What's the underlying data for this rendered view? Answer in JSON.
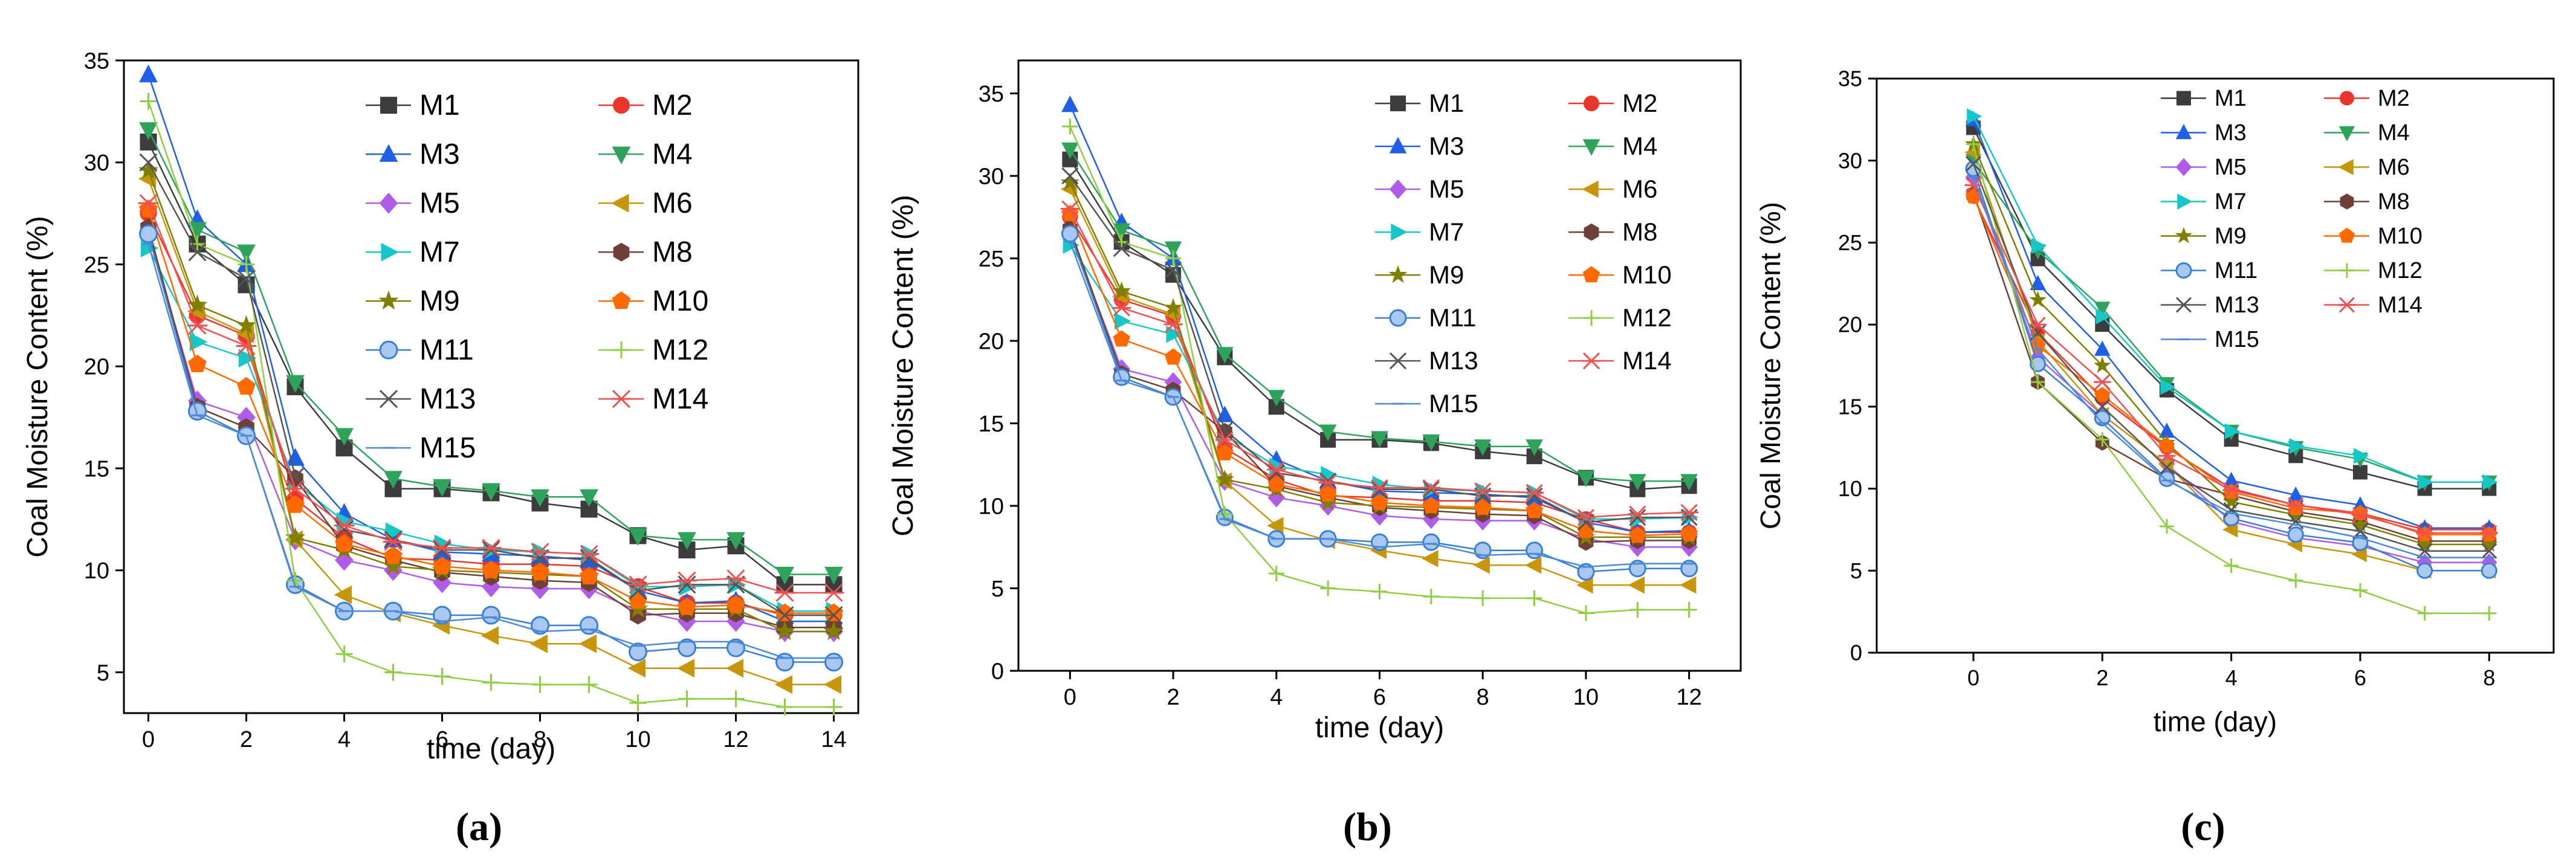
{
  "chart_data": [
    {
      "type": "line",
      "panel_label": "(a)",
      "xlabel": "time (day)",
      "ylabel": "Coal Moisture Content  (%)",
      "xlim": [
        -0.5,
        14.5
      ],
      "ylim": [
        3,
        35
      ],
      "xticks": [
        0,
        2,
        4,
        6,
        8,
        10,
        12,
        14
      ],
      "yticks": [
        5,
        10,
        15,
        20,
        25,
        30,
        35
      ],
      "x": [
        0,
        1,
        2,
        3,
        4,
        5,
        6,
        7,
        8,
        9,
        10,
        11,
        12,
        13,
        14
      ],
      "legend_position": "top-right",
      "series": [
        {
          "name": "M1",
          "values": [
            31.0,
            26.0,
            24.0,
            19.0,
            16.0,
            14.0,
            14.0,
            13.8,
            13.3,
            13.0,
            11.7,
            11.0,
            11.2,
            9.3,
            9.3
          ]
        },
        {
          "name": "M2",
          "values": [
            27.5,
            22.5,
            21.5,
            13.5,
            11.6,
            10.6,
            10.5,
            10.3,
            10.3,
            10.2,
            9.2,
            8.4,
            8.4,
            7.8,
            7.8
          ]
        },
        {
          "name": "M3",
          "values": [
            34.3,
            27.2,
            25.0,
            15.5,
            12.8,
            11.5,
            10.9,
            10.8,
            10.7,
            10.5,
            9.0,
            8.4,
            8.5,
            7.5,
            7.5
          ]
        },
        {
          "name": "M4",
          "values": [
            31.6,
            26.7,
            25.6,
            19.2,
            16.6,
            14.5,
            14.1,
            13.9,
            13.6,
            13.6,
            11.7,
            11.5,
            11.5,
            9.8,
            9.8
          ]
        },
        {
          "name": "M5",
          "values": [
            26.5,
            18.3,
            17.5,
            11.5,
            10.5,
            10.0,
            9.4,
            9.2,
            9.1,
            9.1,
            8.0,
            7.5,
            7.5,
            7.0,
            7.0
          ]
        },
        {
          "name": "M6",
          "values": [
            29.2,
            22.7,
            21.6,
            11.5,
            8.8,
            7.9,
            7.3,
            6.8,
            6.4,
            6.4,
            5.2,
            5.2,
            5.2,
            4.4,
            4.4
          ]
        },
        {
          "name": "M7",
          "values": [
            25.8,
            21.2,
            20.4,
            14.3,
            12.4,
            11.9,
            11.3,
            11.0,
            10.9,
            10.8,
            9.2,
            9.2,
            9.3,
            8.0,
            8.0
          ]
        },
        {
          "name": "M8",
          "values": [
            26.8,
            18.0,
            17.0,
            14.5,
            11.2,
            10.5,
            9.9,
            9.7,
            9.5,
            9.4,
            7.8,
            7.9,
            7.9,
            7.2,
            7.2
          ]
        },
        {
          "name": "M9",
          "values": [
            29.6,
            23.0,
            22.0,
            11.6,
            11.0,
            10.2,
            10.0,
            9.9,
            9.8,
            9.7,
            8.1,
            8.1,
            8.1,
            7.0,
            7.0
          ]
        },
        {
          "name": "M10",
          "values": [
            27.7,
            20.1,
            19.0,
            13.2,
            11.3,
            10.7,
            10.2,
            10.0,
            9.9,
            9.7,
            8.5,
            8.2,
            8.3,
            7.9,
            7.9
          ]
        },
        {
          "name": "M11",
          "values": [
            26.5,
            17.8,
            16.6,
            9.3,
            8.0,
            8.0,
            7.8,
            7.8,
            7.3,
            7.3,
            6.0,
            6.2,
            6.2,
            5.5,
            5.5
          ]
        },
        {
          "name": "M12",
          "values": [
            33.0,
            26.0,
            25.0,
            9.5,
            5.9,
            5.0,
            4.8,
            4.5,
            4.4,
            4.4,
            3.5,
            3.7,
            3.7,
            3.3,
            3.3
          ]
        },
        {
          "name": "M13",
          "values": [
            30.0,
            25.6,
            24.3,
            14.6,
            12.0,
            11.5,
            11.0,
            11.0,
            10.6,
            10.6,
            9.0,
            9.3,
            9.3,
            7.8,
            7.8
          ]
        },
        {
          "name": "M14",
          "values": [
            28.0,
            22.0,
            21.0,
            14.0,
            12.2,
            11.4,
            11.1,
            11.1,
            10.9,
            10.8,
            9.3,
            9.5,
            9.6,
            8.9,
            8.9
          ]
        },
        {
          "name": "M15",
          "values": [
            26.0,
            17.6,
            16.6,
            9.2,
            8.0,
            8.0,
            7.5,
            7.7,
            7.0,
            7.1,
            6.3,
            6.5,
            6.5,
            5.7,
            5.7
          ]
        }
      ]
    },
    {
      "type": "line",
      "panel_label": "(b)",
      "xlabel": "time (day)",
      "ylabel": "Coal Moisture Content  (%)",
      "xlim": [
        -1,
        13
      ],
      "ylim": [
        0,
        37
      ],
      "xticks": [
        0,
        2,
        4,
        6,
        8,
        10,
        12
      ],
      "yticks": [
        0,
        5,
        10,
        15,
        20,
        25,
        30,
        35
      ],
      "x": [
        0,
        1,
        2,
        3,
        4,
        5,
        6,
        7,
        8,
        9,
        10,
        11,
        12
      ],
      "legend_position": "top-right",
      "series": [
        {
          "name": "M1",
          "values": [
            31.0,
            26.0,
            24.0,
            19.0,
            16.0,
            14.0,
            14.0,
            13.8,
            13.3,
            13.0,
            11.7,
            11.0,
            11.2
          ]
        },
        {
          "name": "M2",
          "values": [
            27.5,
            22.5,
            21.5,
            13.5,
            11.6,
            10.6,
            10.5,
            10.3,
            10.3,
            10.2,
            9.2,
            8.4,
            8.4
          ]
        },
        {
          "name": "M3",
          "values": [
            34.3,
            27.2,
            25.0,
            15.5,
            12.8,
            11.5,
            10.9,
            10.8,
            10.7,
            10.5,
            9.0,
            8.4,
            8.5
          ]
        },
        {
          "name": "M4",
          "values": [
            31.6,
            26.7,
            25.6,
            19.2,
            16.6,
            14.5,
            14.1,
            13.9,
            13.6,
            13.6,
            11.7,
            11.5,
            11.5
          ]
        },
        {
          "name": "M5",
          "values": [
            26.5,
            18.3,
            17.5,
            11.5,
            10.5,
            10.0,
            9.4,
            9.2,
            9.1,
            9.1,
            8.0,
            7.5,
            7.5
          ]
        },
        {
          "name": "M6",
          "values": [
            29.2,
            22.7,
            21.6,
            11.5,
            8.8,
            7.9,
            7.3,
            6.8,
            6.4,
            6.4,
            5.2,
            5.2,
            5.2
          ]
        },
        {
          "name": "M7",
          "values": [
            25.8,
            21.2,
            20.4,
            14.3,
            12.4,
            11.9,
            11.3,
            11.0,
            10.9,
            10.8,
            9.2,
            9.2,
            9.3
          ]
        },
        {
          "name": "M8",
          "values": [
            26.8,
            18.0,
            17.0,
            14.5,
            11.2,
            10.5,
            9.9,
            9.7,
            9.5,
            9.4,
            7.8,
            7.9,
            7.9
          ]
        },
        {
          "name": "M9",
          "values": [
            29.6,
            23.0,
            22.0,
            11.6,
            11.0,
            10.2,
            10.0,
            9.9,
            9.8,
            9.7,
            8.1,
            8.1,
            8.1
          ]
        },
        {
          "name": "M10",
          "values": [
            27.7,
            20.1,
            19.0,
            13.2,
            11.3,
            10.7,
            10.2,
            10.0,
            9.9,
            9.7,
            8.5,
            8.2,
            8.3
          ]
        },
        {
          "name": "M11",
          "values": [
            26.5,
            17.8,
            16.6,
            9.3,
            8.0,
            8.0,
            7.8,
            7.8,
            7.3,
            7.3,
            6.0,
            6.2,
            6.2
          ]
        },
        {
          "name": "M12",
          "values": [
            33.0,
            26.0,
            25.0,
            9.5,
            5.9,
            5.0,
            4.8,
            4.5,
            4.4,
            4.4,
            3.5,
            3.7,
            3.7
          ]
        },
        {
          "name": "M13",
          "values": [
            30.0,
            25.6,
            24.3,
            14.6,
            12.0,
            11.5,
            11.0,
            11.0,
            10.6,
            10.6,
            9.0,
            9.3,
            9.3
          ]
        },
        {
          "name": "M14",
          "values": [
            28.0,
            22.0,
            21.0,
            14.0,
            12.2,
            11.4,
            11.1,
            11.1,
            10.9,
            10.8,
            9.3,
            9.5,
            9.6
          ]
        },
        {
          "name": "M15",
          "values": [
            26.0,
            17.6,
            16.6,
            9.2,
            8.0,
            8.0,
            7.5,
            7.7,
            7.0,
            7.1,
            6.3,
            6.5,
            6.5
          ]
        }
      ]
    },
    {
      "type": "line",
      "panel_label": "(c)",
      "xlabel": "time (day)",
      "ylabel": "Coal Moisture Content  (%)",
      "xlim": [
        -1.5,
        9
      ],
      "ylim": [
        0,
        35
      ],
      "xticks": [
        0,
        2,
        4,
        6,
        8
      ],
      "yticks": [
        0,
        5,
        10,
        15,
        20,
        25,
        30,
        35
      ],
      "x": [
        0,
        1,
        2,
        3,
        4,
        5,
        6,
        7,
        8
      ],
      "legend_position": "top-right",
      "series": [
        {
          "name": "M1",
          "values": [
            32.0,
            24.0,
            20.0,
            16.0,
            13.0,
            12.0,
            11.0,
            10.0,
            10.0
          ]
        },
        {
          "name": "M2",
          "values": [
            27.8,
            19.5,
            15.5,
            12.5,
            10.0,
            9.0,
            8.5,
            7.5,
            7.5
          ]
        },
        {
          "name": "M3",
          "values": [
            32.5,
            22.5,
            18.5,
            13.5,
            10.5,
            9.6,
            9.0,
            7.6,
            7.6
          ]
        },
        {
          "name": "M4",
          "values": [
            30.0,
            24.5,
            21.0,
            16.4,
            13.5,
            12.5,
            11.8,
            10.4,
            10.4
          ]
        },
        {
          "name": "M5",
          "values": [
            29.0,
            18.0,
            14.5,
            11.5,
            8.0,
            7.0,
            6.5,
            5.5,
            5.5
          ]
        },
        {
          "name": "M6",
          "values": [
            30.5,
            19.0,
            14.5,
            11.5,
            7.5,
            6.6,
            6.0,
            5.0,
            5.0
          ]
        },
        {
          "name": "M7",
          "values": [
            32.7,
            24.8,
            20.5,
            16.2,
            13.5,
            12.6,
            12.0,
            10.4,
            10.4
          ]
        },
        {
          "name": "M8",
          "values": [
            28.0,
            16.5,
            12.8,
            10.6,
            9.6,
            8.6,
            8.0,
            6.8,
            6.8
          ]
        },
        {
          "name": "M9",
          "values": [
            31.0,
            21.5,
            17.5,
            12.8,
            9.2,
            8.4,
            7.8,
            6.6,
            6.6
          ]
        },
        {
          "name": "M10",
          "values": [
            27.8,
            18.7,
            15.7,
            12.6,
            9.8,
            8.8,
            8.5,
            7.2,
            7.2
          ]
        },
        {
          "name": "M11",
          "values": [
            29.5,
            17.6,
            14.3,
            10.6,
            8.2,
            7.2,
            6.7,
            5.0,
            5.0
          ]
        },
        {
          "name": "M12",
          "values": [
            31.0,
            16.5,
            13.0,
            7.7,
            5.3,
            4.4,
            3.8,
            2.4,
            2.4
          ]
        },
        {
          "name": "M13",
          "values": [
            29.8,
            19.5,
            15.0,
            11.3,
            8.7,
            8.0,
            7.4,
            6.2,
            6.2
          ]
        },
        {
          "name": "M14",
          "values": [
            28.5,
            20.0,
            16.5,
            12.0,
            9.9,
            9.0,
            8.4,
            7.3,
            7.3
          ]
        },
        {
          "name": "M15",
          "values": [
            29.0,
            18.5,
            14.0,
            10.5,
            8.5,
            7.8,
            7.0,
            5.8,
            5.8
          ]
        }
      ]
    }
  ],
  "series_styles": {
    "M1": {
      "color": "#3c3c3c",
      "marker": "square"
    },
    "M2": {
      "color": "#e8362c",
      "marker": "circle"
    },
    "M3": {
      "color": "#1e5fe6",
      "marker": "triangle-up"
    },
    "M4": {
      "color": "#2da35c",
      "marker": "triangle-down"
    },
    "M5": {
      "color": "#b15ce8",
      "marker": "diamond"
    },
    "M6": {
      "color": "#c8960a",
      "marker": "triangle-left"
    },
    "M7": {
      "color": "#17c7c7",
      "marker": "triangle-right"
    },
    "M8": {
      "color": "#6e4036",
      "marker": "hexagon"
    },
    "M9": {
      "color": "#808000",
      "marker": "star"
    },
    "M10": {
      "color": "#ff6a00",
      "marker": "pentagon"
    },
    "M11": {
      "color": "#3a7fd5",
      "marker": "sphere"
    },
    "M12": {
      "color": "#8fce40",
      "marker": "plus"
    },
    "M13": {
      "color": "#555555",
      "marker": "cross"
    },
    "M14": {
      "color": "#f05050",
      "marker": "asterisk"
    },
    "M15": {
      "color": "#4a8ad8",
      "marker": "dash"
    }
  }
}
